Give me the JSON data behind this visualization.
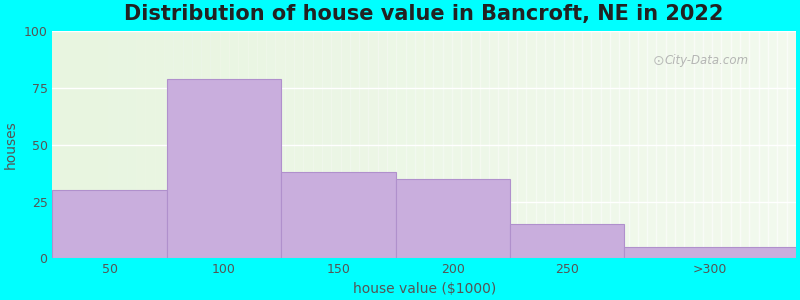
{
  "title": "Distribution of house value in Bancroft, NE in 2022",
  "xlabel": "house value ($1000)",
  "ylabel": "houses",
  "bar_labels": [
    "50",
    "100",
    "150",
    "200",
    "250",
    ">300"
  ],
  "bar_heights": [
    30,
    79,
    38,
    35,
    15,
    5
  ],
  "bar_color": "#c9aedd",
  "bar_edge_color": "#b090cc",
  "ylim": [
    0,
    100
  ],
  "yticks": [
    0,
    25,
    50,
    75,
    100
  ],
  "background_color": "#00FFFF",
  "plot_bg_color": "#e8f5e0",
  "grid_color": "#ffffff",
  "title_fontsize": 15,
  "title_fontweight": "bold",
  "axis_label_fontsize": 10,
  "tick_fontsize": 9,
  "tick_color": "#555555",
  "label_color": "#555555",
  "watermark_text": "City-Data.com",
  "bin_edges": [
    25,
    75,
    125,
    175,
    225,
    275,
    350
  ],
  "xlim": [
    25,
    350
  ]
}
